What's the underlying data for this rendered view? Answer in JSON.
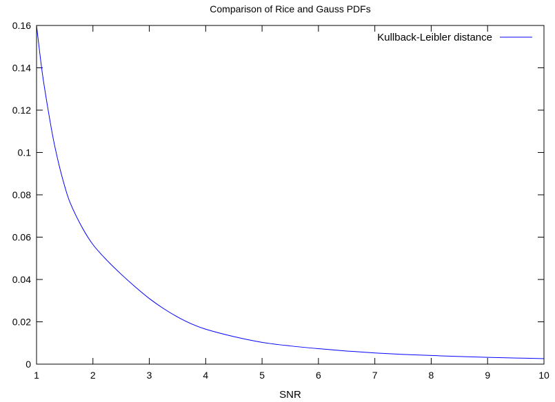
{
  "chart_data": {
    "type": "line",
    "title": "Comparison of Rice and Gauss PDFs",
    "xlabel": "SNR",
    "ylabel": "",
    "xlim": [
      1,
      10
    ],
    "ylim": [
      0,
      0.16
    ],
    "x_ticks": [
      "1",
      "2",
      "3",
      "4",
      "5",
      "6",
      "7",
      "8",
      "9",
      "10"
    ],
    "y_ticks": [
      "0",
      "0.02",
      "0.04",
      "0.06",
      "0.08",
      "0.1",
      "0.12",
      "0.14",
      "0.16"
    ],
    "grid": false,
    "legend_position": "top-right",
    "series": [
      {
        "name": "Kullback-Leibler distance",
        "color": "#0000ff",
        "x": [
          1.0,
          1.1,
          1.2,
          1.3,
          1.4,
          1.5,
          1.6,
          1.8,
          2.0,
          2.25,
          2.5,
          2.75,
          3.0,
          3.25,
          3.5,
          3.75,
          4.0,
          4.5,
          5.0,
          5.5,
          6.0,
          6.5,
          7.0,
          7.5,
          8.0,
          8.5,
          9.0,
          9.5,
          10.0
        ],
        "y": [
          0.16,
          0.138,
          0.121,
          0.106,
          0.094,
          0.084,
          0.076,
          0.065,
          0.0565,
          0.049,
          0.0425,
          0.0365,
          0.031,
          0.0263,
          0.0223,
          0.019,
          0.0165,
          0.013,
          0.0103,
          0.0086,
          0.0073,
          0.0062,
          0.0053,
          0.0046,
          0.0041,
          0.0036,
          0.0032,
          0.0029,
          0.0026
        ]
      }
    ]
  }
}
